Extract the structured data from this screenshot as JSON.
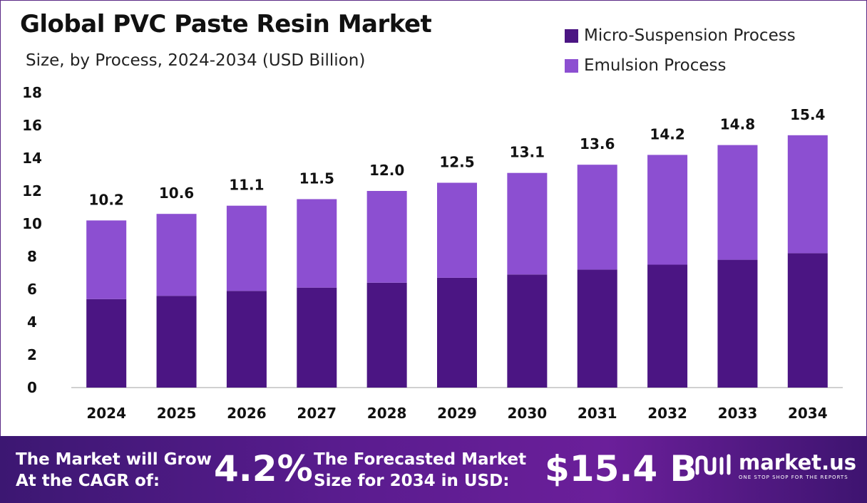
{
  "header": {
    "title": "Global PVC Paste Resin Market",
    "subtitle": "Size, by Process, 2024-2034 (USD Billion)"
  },
  "colors": {
    "micro": "#4b1583",
    "emulsion": "#8c4fd1",
    "axis": "#d0d0d0"
  },
  "chart_data": {
    "type": "bar",
    "stacked": true,
    "title": "Global PVC Paste Resin Market",
    "subtitle": "Size, by Process, 2024-2034 (USD Billion)",
    "categories": [
      "2024",
      "2025",
      "2026",
      "2027",
      "2028",
      "2029",
      "2030",
      "2031",
      "2032",
      "2033",
      "2034"
    ],
    "series": [
      {
        "name": "Micro-Suspension Process",
        "values": [
          5.4,
          5.6,
          5.9,
          6.1,
          6.4,
          6.7,
          6.9,
          7.2,
          7.5,
          7.8,
          8.2
        ]
      },
      {
        "name": "Emulsion Process",
        "values": [
          4.8,
          5.0,
          5.2,
          5.4,
          5.6,
          5.8,
          6.2,
          6.4,
          6.7,
          7.0,
          7.2
        ]
      }
    ],
    "totals": [
      "10.2",
      "10.6",
      "11.1",
      "11.5",
      "12.0",
      "12.5",
      "13.1",
      "13.6",
      "14.2",
      "14.8",
      "15.4"
    ],
    "yticks": [
      "0",
      "2",
      "4",
      "6",
      "8",
      "10",
      "12",
      "14",
      "16",
      "18"
    ],
    "ylim": [
      0,
      18
    ],
    "xlabel": "",
    "ylabel": "",
    "legend_position": "top-right",
    "grid": false
  },
  "footer": {
    "cagr_label_line1": "The Market will Grow",
    "cagr_label_line2": "At the CAGR of:",
    "cagr_value": "4.2%",
    "forecast_label_line1": "The Forecasted Market",
    "forecast_label_line2": "Size for 2034 in USD:",
    "forecast_value": "$15.4 B",
    "brand_name": "market.us",
    "brand_tagline": "ONE STOP SHOP FOR THE REPORTS"
  }
}
